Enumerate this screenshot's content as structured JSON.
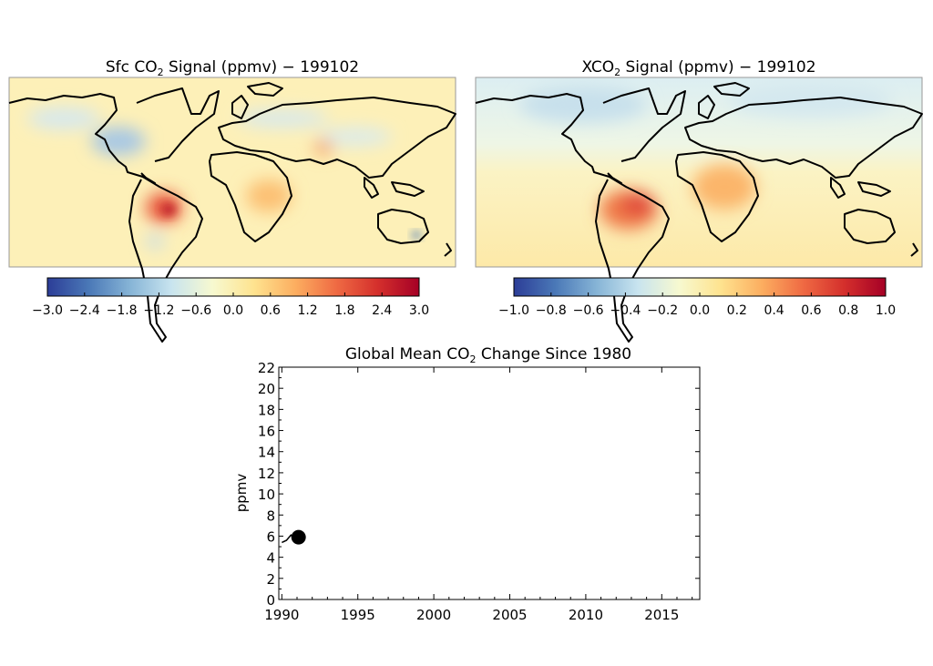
{
  "panels": [
    {
      "title_prefix": "Sfc CO",
      "title_sub": "2",
      "title_suffix": " Signal (ppmv) − 199102",
      "colorbar": {
        "min": -3.0,
        "max": 3.0,
        "ticks": [
          "−3.0",
          "−2.4",
          "−1.8",
          "−1.2",
          "−0.6",
          "0.0",
          "0.6",
          "1.2",
          "1.8",
          "2.4",
          "3.0"
        ]
      }
    },
    {
      "title_prefix": "XCO",
      "title_sub": "2",
      "title_suffix": " Signal (ppmv) − 199102",
      "colorbar": {
        "min": -1.0,
        "max": 1.0,
        "ticks": [
          "−1.0",
          "−0.8",
          "−0.6",
          "−0.4",
          "−0.2",
          "0.0",
          "0.2",
          "0.4",
          "0.6",
          "0.8",
          "1.0"
        ]
      }
    }
  ],
  "colormap": [
    "#2c3d97",
    "#4a78b7",
    "#86b4d6",
    "#c8e4ef",
    "#f7f9d0",
    "#fee38f",
    "#fcae60",
    "#ef6a43",
    "#d42f2c",
    "#a50026"
  ],
  "chart_data": {
    "type": "line",
    "title_prefix": "Global Mean CO",
    "title_sub": "2",
    "title_suffix": " Change Since 1980",
    "xlabel": "",
    "ylabel": "ppmv",
    "xlim": [
      1989.8,
      2017.5
    ],
    "ylim": [
      0,
      22
    ],
    "x_ticks": [
      "1990",
      "1995",
      "2000",
      "2005",
      "2010",
      "2015"
    ],
    "y_ticks": [
      "0",
      "2",
      "4",
      "6",
      "8",
      "10",
      "12",
      "14",
      "16",
      "18",
      "20",
      "22"
    ],
    "series": [
      {
        "x": [
          1990.0,
          1990.3,
          1990.6,
          1990.8,
          1991.1
        ],
        "y": [
          5.4,
          5.6,
          6.1,
          5.8,
          5.9
        ]
      }
    ],
    "marker": {
      "x": 1991.1,
      "y": 5.9
    }
  }
}
